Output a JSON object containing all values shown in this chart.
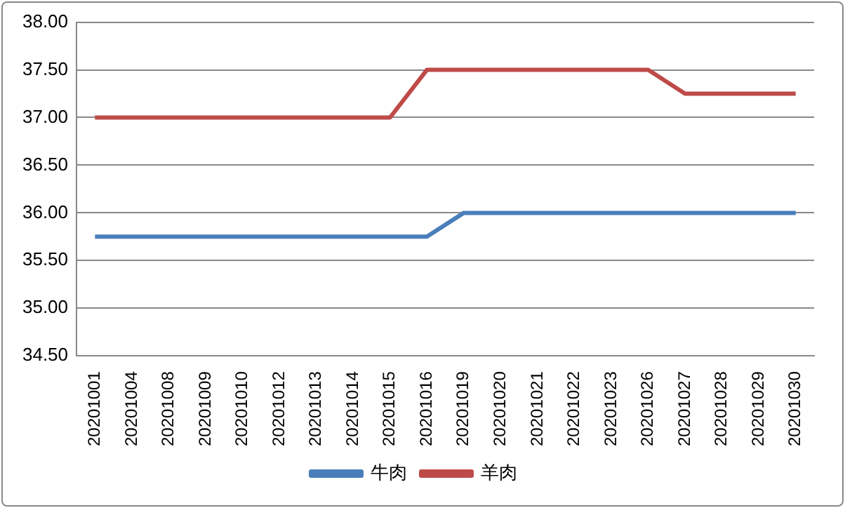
{
  "chart_data": {
    "type": "line",
    "categories": [
      "20201001",
      "20201004",
      "20201008",
      "20201009",
      "20201010",
      "20201012",
      "20201013",
      "20201014",
      "20201015",
      "20201016",
      "20201019",
      "20201020",
      "20201021",
      "20201022",
      "20201023",
      "20201026",
      "20201027",
      "20201028",
      "20201029",
      "20201030"
    ],
    "series": [
      {
        "name": "牛肉",
        "color": "#4a7ebb",
        "values": [
          35.75,
          35.75,
          35.75,
          35.75,
          35.75,
          35.75,
          35.75,
          35.75,
          35.75,
          35.75,
          36.0,
          36.0,
          36.0,
          36.0,
          36.0,
          36.0,
          36.0,
          36.0,
          36.0,
          36.0
        ]
      },
      {
        "name": "羊肉",
        "color": "#be4b48",
        "values": [
          37.0,
          37.0,
          37.0,
          37.0,
          37.0,
          37.0,
          37.0,
          37.0,
          37.0,
          37.5,
          37.5,
          37.5,
          37.5,
          37.5,
          37.5,
          37.5,
          37.25,
          37.25,
          37.25,
          37.25
        ]
      }
    ],
    "ylim": [
      34.5,
      38.0
    ],
    "yticks": [
      {
        "value": 34.5,
        "label": "34.50"
      },
      {
        "value": 35.0,
        "label": "35.00"
      },
      {
        "value": 35.5,
        "label": "35.50"
      },
      {
        "value": 36.0,
        "label": "36.00"
      },
      {
        "value": 36.5,
        "label": "36.50"
      },
      {
        "value": 37.0,
        "label": "37.00"
      },
      {
        "value": 37.5,
        "label": "37.50"
      },
      {
        "value": 38.0,
        "label": "38.00"
      }
    ],
    "grid": "y",
    "legend": "bottom",
    "marker": "none",
    "line_style": "solid"
  }
}
